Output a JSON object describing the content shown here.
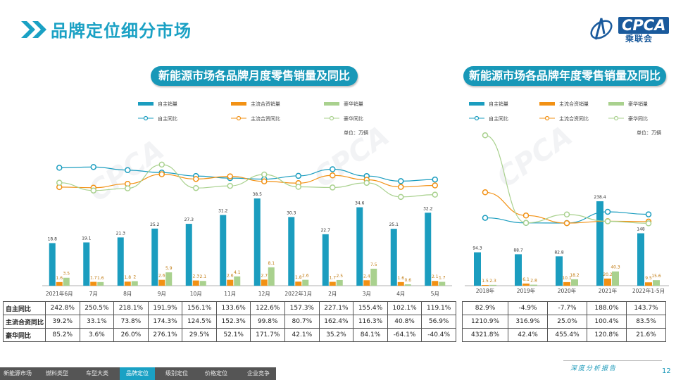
{
  "header": {
    "title": "品牌定位细分市场",
    "logo_text": "CPCA",
    "logo_sub": "乘联会"
  },
  "colors": {
    "accent": "#1aa1c4",
    "self_bar": "#1b9dbf",
    "jv_bar": "#f29114",
    "lux_bar": "#a9d18e"
  },
  "chart_data": [
    {
      "type": "bar",
      "title": "新能源市场各品牌月度零售销量及同比",
      "unit": "单位：万辆",
      "categories": [
        "2021年6月",
        "7月",
        "8月",
        "9月",
        "10月",
        "11月",
        "12月",
        "2022年1月",
        "2月",
        "3月",
        "4月",
        "5月"
      ],
      "series": [
        {
          "name": "自主销量",
          "values": [
            18.8,
            19.1,
            21.3,
            25.2,
            27.3,
            31.2,
            38.5,
            30.3,
            22.7,
            34.6,
            25.1,
            32.2
          ]
        },
        {
          "name": "主流合资销量",
          "values": [
            1.6,
            1.7,
            1.8,
            2.6,
            2.3,
            2.6,
            2.7,
            1.8,
            1.7,
            2.4,
            1.6,
            2.1
          ]
        },
        {
          "name": "豪华销量",
          "values": [
            3.5,
            1.6,
            2.0,
            5.9,
            2.1,
            4.1,
            8.1,
            2.6,
            2.5,
            7.5,
            0.6,
            1.7
          ]
        }
      ],
      "line_series": [
        {
          "name": "自主同比",
          "values": [
            242.8,
            250.5,
            218.1,
            191.9,
            156.1,
            133.6,
            122.6,
            157.3,
            227.1,
            155.4,
            102.1,
            119.1
          ]
        },
        {
          "name": "主流合资同比",
          "values": [
            39.2,
            33.1,
            73.8,
            174.3,
            124.5,
            152.3,
            99.8,
            80.7,
            162.4,
            116.3,
            40.8,
            56.9
          ]
        },
        {
          "name": "豪华同比",
          "values": [
            85.2,
            3.6,
            26.0,
            276.1,
            29.5,
            52.1,
            171.7,
            42.1,
            35.2,
            84.1,
            -64.1,
            -40.4
          ]
        }
      ],
      "table": {
        "rows": [
          {
            "label": "自主同比",
            "cells": [
              "242.8%",
              "250.5%",
              "218.1%",
              "191.9%",
              "156.1%",
              "133.6%",
              "122.6%",
              "157.3%",
              "227.1%",
              "155.4%",
              "102.1%",
              "119.1%"
            ]
          },
          {
            "label": "主流合资同比",
            "cells": [
              "39.2%",
              "33.1%",
              "73.8%",
              "174.3%",
              "124.5%",
              "152.3%",
              "99.8%",
              "80.7%",
              "162.4%",
              "116.3%",
              "40.8%",
              "56.9%"
            ]
          },
          {
            "label": "豪华同比",
            "cells": [
              "85.2%",
              "3.6%",
              "26.0%",
              "276.1%",
              "29.5%",
              "52.1%",
              "171.7%",
              "42.1%",
              "35.2%",
              "84.1%",
              "-64.1%",
              "-40.4%"
            ]
          }
        ]
      }
    },
    {
      "type": "bar",
      "title": "新能源市场各品牌年度零售销量及同比",
      "unit": "单位：万辆",
      "categories": [
        "2018年",
        "2019年",
        "2020年",
        "2021年",
        "2022年1-5月"
      ],
      "series": [
        {
          "name": "自主销量",
          "values": [
            94.3,
            88.7,
            82.8,
            238.4,
            148.0
          ]
        },
        {
          "name": "主流合资销量",
          "values": [
            1.5,
            6.1,
            10.1,
            20.2,
            9.5
          ]
        },
        {
          "name": "豪华销量",
          "values": [
            2.3,
            2.8,
            18.2,
            40.3,
            15.6
          ]
        }
      ],
      "line_series": [
        {
          "name": "自主同比",
          "values": [
            82.9,
            -4.9,
            -7.7,
            188.0,
            143.7
          ]
        },
        {
          "name": "主流合资同比",
          "values": [
            1210.9,
            316.9,
            25.0,
            100.4,
            83.5
          ]
        },
        {
          "name": "豪华同比",
          "values": [
            4321.8,
            42.4,
            455.4,
            120.8,
            21.6
          ]
        }
      ],
      "table": {
        "rows": [
          {
            "label": "自主同比",
            "cells": [
              "82.9%",
              "-4.9%",
              "-7.7%",
              "188.0%",
              "143.7%"
            ]
          },
          {
            "label": "主流合资同比",
            "cells": [
              "1210.9%",
              "316.9%",
              "25.0%",
              "100.4%",
              "83.5%"
            ]
          },
          {
            "label": "豪华同比",
            "cells": [
              "4321.8%",
              "42.4%",
              "455.4%",
              "120.8%",
              "21.6%"
            ]
          }
        ]
      }
    }
  ],
  "footer": {
    "tabs": [
      "新能源市场",
      "燃料类型",
      "车型大类",
      "品牌定位",
      "级别定位",
      "价格定位",
      "企业竞争"
    ],
    "active_index": 3,
    "right_text": "深度分析报告",
    "page_number": "12"
  }
}
